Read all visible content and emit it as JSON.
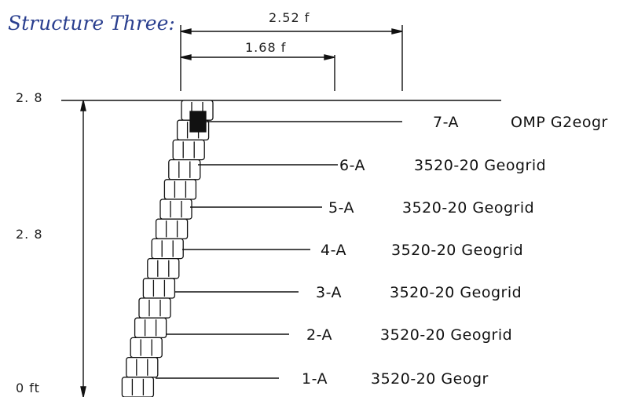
{
  "title": "Structure Three:",
  "dimensions": {
    "top_width": "2.52 f",
    "mid_width": "1.68 f",
    "height_top": "2. 8",
    "height_mid": "2. 8",
    "height_bottom": "0 ft"
  },
  "layers": [
    {
      "id": "7-A",
      "material": "OMP G2eogr"
    },
    {
      "id": "6-A",
      "material": "3520-20 Geogrid"
    },
    {
      "id": "5-A",
      "material": "3520-20 Geogrid"
    },
    {
      "id": "4-A",
      "material": "3520-20 Geogrid"
    },
    {
      "id": "3-A",
      "material": "3520-20 Geogrid"
    },
    {
      "id": "2-A",
      "material": "3520-20 Geogrid"
    },
    {
      "id": "1-A",
      "material": "3520-20 Geogr"
    }
  ],
  "colors": {
    "title": "#2a3f8f",
    "line": "#111111"
  }
}
